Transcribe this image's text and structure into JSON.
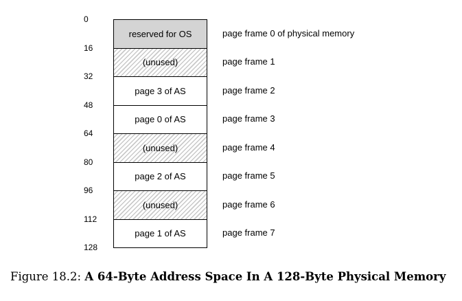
{
  "addresses": [
    "0",
    "16",
    "32",
    "48",
    "64",
    "80",
    "96",
    "112",
    "128"
  ],
  "frames": [
    {
      "content": "reserved for OS",
      "type": "reserved",
      "label": "page frame 0 of physical memory"
    },
    {
      "content": "(unused)",
      "type": "unused",
      "label": "page frame 1"
    },
    {
      "content": "page 3 of AS",
      "type": "page",
      "label": "page frame 2"
    },
    {
      "content": "page 0 of AS",
      "type": "page",
      "label": "page frame 3"
    },
    {
      "content": "(unused)",
      "type": "unused",
      "label": "page frame 4"
    },
    {
      "content": "page 2 of AS",
      "type": "page",
      "label": "page frame 5"
    },
    {
      "content": "(unused)",
      "type": "unused",
      "label": "page frame 6"
    },
    {
      "content": "page 1 of AS",
      "type": "page",
      "label": "page frame 7"
    }
  ],
  "caption": {
    "prefix": "Figure 18.2:",
    "title": "A 64-Byte Address Space In A 128-Byte Physical Memory"
  },
  "colors": {
    "reserved_fill": "#d4d4d4",
    "unused_hatch": "#c9c9c9",
    "border": "#000000"
  }
}
